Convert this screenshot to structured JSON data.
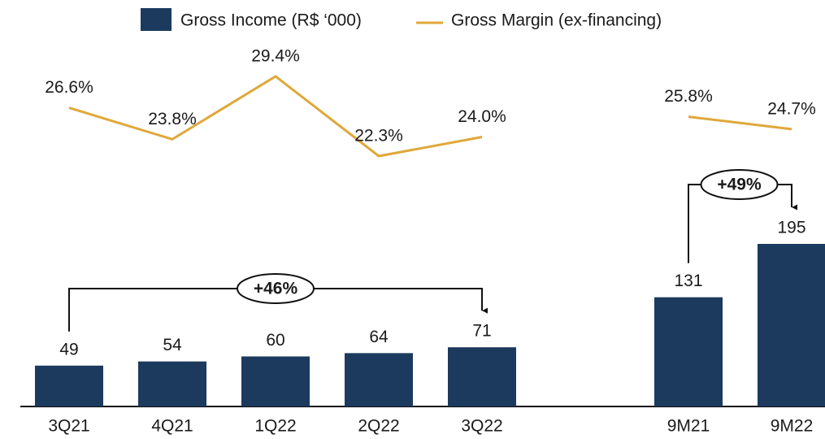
{
  "chart_data": {
    "type": "bar+line",
    "categories": [
      "3Q21",
      "4Q21",
      "1Q22",
      "2Q22",
      "3Q22",
      null,
      "9M21",
      "9M22"
    ],
    "series": [
      {
        "name": "Gross  Income (R$ ‘000)",
        "type": "bar",
        "color": "#1b3a5e",
        "values": [
          49,
          54,
          60,
          64,
          71,
          null,
          131,
          195
        ]
      },
      {
        "name": "Gross Margin (ex-financing)",
        "type": "line",
        "color": "#e0a83a",
        "axis": "y2",
        "values": [
          26.6,
          23.8,
          29.4,
          22.3,
          24.0,
          null,
          25.8,
          24.7
        ],
        "value_labels": [
          "26.6%",
          "23.8%",
          "29.4%",
          "22.3%",
          "24.0%",
          null,
          "25.8%",
          "24.7%"
        ]
      }
    ],
    "ylim": [
      0,
      487.5
    ],
    "y2lim": [
      0,
      36.2
    ],
    "legend": "top",
    "annotations": [
      "+46%",
      "+49%"
    ]
  }
}
